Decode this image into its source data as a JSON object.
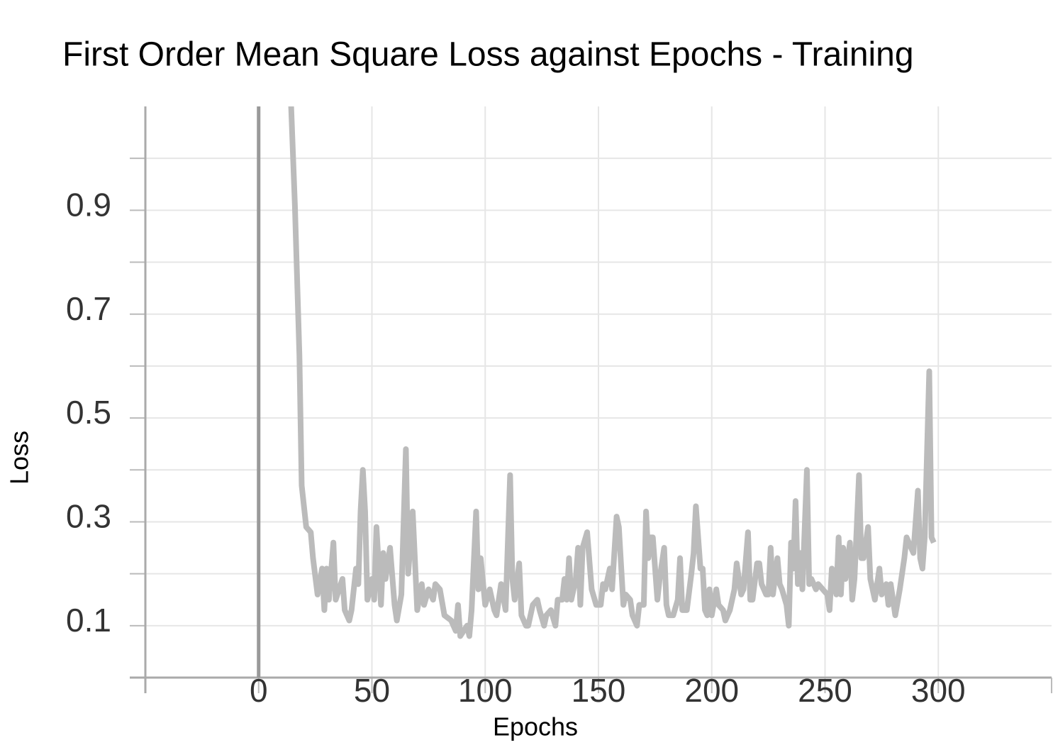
{
  "chart_data": {
    "type": "line",
    "title": "First Order Mean Square Loss against Epochs - Training",
    "xlabel": "Epochs",
    "ylabel": "Loss",
    "x": [
      14,
      16,
      18,
      19,
      21,
      23,
      24,
      26,
      28,
      29,
      30,
      31,
      33,
      34,
      37,
      38,
      40,
      41,
      43,
      44,
      45,
      46,
      47,
      48,
      50,
      51,
      52,
      54,
      55,
      56,
      58,
      60,
      61,
      63,
      65,
      66,
      68,
      70,
      72,
      73,
      75,
      77,
      78,
      80,
      82,
      85,
      87,
      88,
      89,
      92,
      93,
      94,
      96,
      97,
      98,
      100,
      102,
      104,
      105,
      107,
      109,
      111,
      112,
      113,
      115,
      116,
      118,
      119,
      121,
      123,
      124,
      126,
      127,
      129,
      131,
      132,
      134,
      135,
      136,
      137,
      138,
      140,
      141,
      142,
      143,
      145,
      147,
      149,
      151,
      152,
      153,
      155,
      156,
      158,
      159,
      161,
      162,
      164,
      165,
      167,
      168,
      170,
      171,
      172,
      173,
      174,
      176,
      177,
      179,
      180,
      181,
      183,
      185,
      186,
      187,
      189,
      191,
      192,
      193,
      195,
      196,
      197,
      198,
      199,
      200,
      202,
      203,
      205,
      206,
      208,
      210,
      211,
      213,
      214,
      216,
      217,
      218,
      220,
      221,
      222,
      224,
      225,
      226,
      227,
      229,
      230,
      231,
      233,
      234,
      235,
      236,
      237,
      238,
      239,
      240,
      242,
      243,
      244,
      246,
      247,
      249,
      251,
      252,
      253,
      255,
      256,
      257,
      258,
      259,
      261,
      262,
      263,
      265,
      266,
      267,
      269,
      270,
      272,
      274,
      275,
      277,
      278,
      279,
      281,
      283,
      285,
      286,
      288,
      289,
      291,
      292,
      293,
      294,
      296,
      297,
      298
    ],
    "values": [
      1.14,
      0.91,
      0.62,
      0.37,
      0.29,
      0.28,
      0.23,
      0.16,
      0.21,
      0.13,
      0.21,
      0.15,
      0.26,
      0.15,
      0.19,
      0.13,
      0.11,
      0.13,
      0.21,
      0.18,
      0.32,
      0.4,
      0.32,
      0.15,
      0.19,
      0.15,
      0.29,
      0.14,
      0.24,
      0.19,
      0.25,
      0.14,
      0.11,
      0.16,
      0.44,
      0.2,
      0.32,
      0.13,
      0.18,
      0.14,
      0.17,
      0.15,
      0.18,
      0.17,
      0.12,
      0.11,
      0.09,
      0.14,
      0.08,
      0.1,
      0.08,
      0.13,
      0.32,
      0.17,
      0.23,
      0.14,
      0.17,
      0.13,
      0.12,
      0.18,
      0.13,
      0.39,
      0.19,
      0.15,
      0.22,
      0.12,
      0.1,
      0.1,
      0.14,
      0.15,
      0.13,
      0.1,
      0.12,
      0.13,
      0.1,
      0.15,
      0.15,
      0.19,
      0.15,
      0.23,
      0.15,
      0.19,
      0.25,
      0.14,
      0.25,
      0.28,
      0.17,
      0.14,
      0.14,
      0.18,
      0.17,
      0.21,
      0.17,
      0.31,
      0.29,
      0.14,
      0.16,
      0.15,
      0.12,
      0.1,
      0.14,
      0.14,
      0.32,
      0.23,
      0.27,
      0.27,
      0.15,
      0.19,
      0.25,
      0.14,
      0.12,
      0.12,
      0.15,
      0.23,
      0.13,
      0.13,
      0.2,
      0.24,
      0.33,
      0.21,
      0.21,
      0.13,
      0.12,
      0.17,
      0.12,
      0.17,
      0.14,
      0.13,
      0.11,
      0.13,
      0.17,
      0.22,
      0.16,
      0.17,
      0.28,
      0.15,
      0.15,
      0.22,
      0.22,
      0.18,
      0.16,
      0.16,
      0.25,
      0.16,
      0.23,
      0.18,
      0.17,
      0.14,
      0.1,
      0.26,
      0.21,
      0.34,
      0.18,
      0.24,
      0.17,
      0.4,
      0.18,
      0.19,
      0.17,
      0.18,
      0.17,
      0.16,
      0.13,
      0.21,
      0.16,
      0.27,
      0.16,
      0.25,
      0.19,
      0.26,
      0.15,
      0.19,
      0.39,
      0.23,
      0.23,
      0.29,
      0.19,
      0.15,
      0.21,
      0.16,
      0.18,
      0.14,
      0.18,
      0.12,
      0.17,
      0.23,
      0.27,
      0.25,
      0.24,
      0.36,
      0.23,
      0.21,
      0.27,
      0.59,
      0.27,
      0.26
    ],
    "color": "#bbbbbb",
    "xlim": [
      -50,
      350
    ],
    "xticks": [
      0,
      50,
      100,
      150,
      200,
      250,
      300
    ],
    "ylim": [
      0,
      1.1
    ],
    "yticks": [
      0.1,
      0.3,
      0.5,
      0.7,
      0.9
    ],
    "minor_yticks": [
      0.2,
      0.4,
      0.6,
      0.8,
      1.0
    ],
    "grid": true,
    "zero_line": true
  }
}
